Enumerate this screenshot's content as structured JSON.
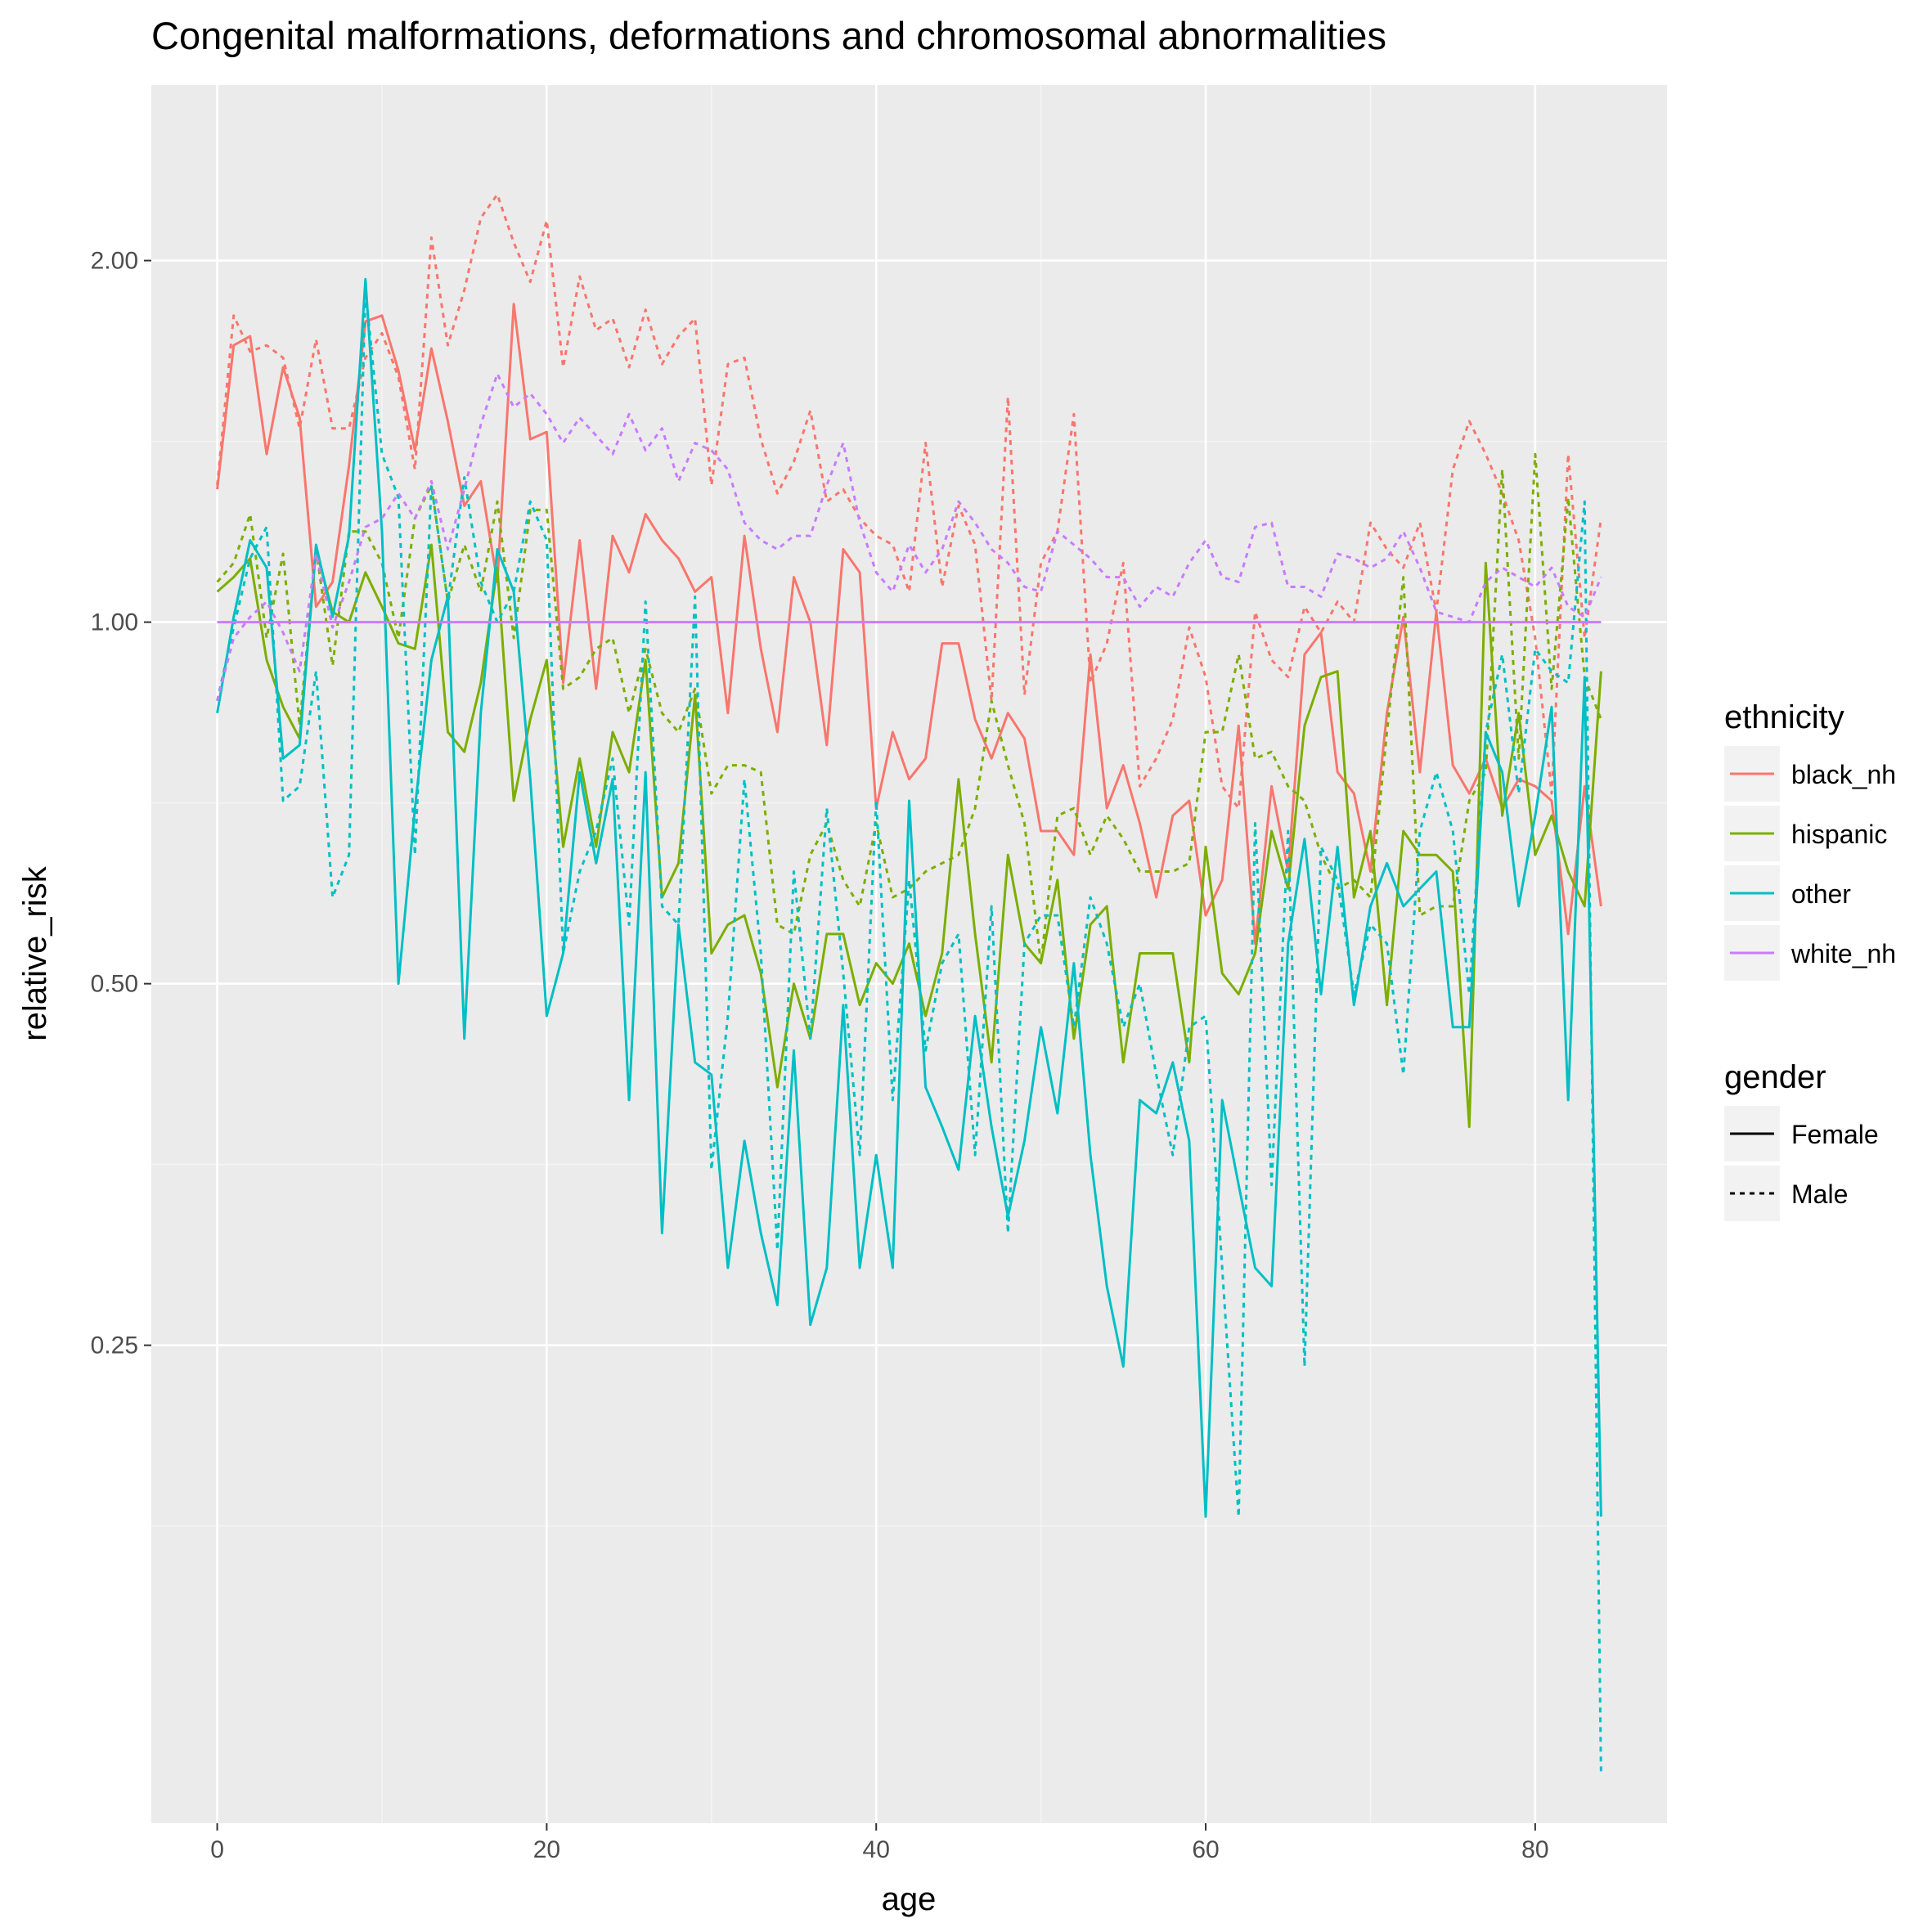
{
  "chart_data": {
    "type": "line",
    "title": "Congenital malformations, deformations and chromosomal abnormalities",
    "xlabel": "age",
    "ylabel": "relative_risk",
    "x_scale": "linear",
    "y_scale": "log2",
    "xlim": [
      -4,
      88
    ],
    "ylim": [
      0.1,
      2.8
    ],
    "x_ticks": [
      0,
      20,
      40,
      60,
      80
    ],
    "x_tick_labels": [
      "0",
      "20",
      "40",
      "60",
      "80"
    ],
    "y_ticks": [
      0.25,
      0.5,
      1,
      2
    ],
    "y_tick_labels": [
      "0.25",
      "0.50",
      "1.00",
      "2.00"
    ],
    "grid": true,
    "legend_position": "right",
    "legend": {
      "ethnicity_title": "ethnicity",
      "gender_title": "gender",
      "ethnicity": [
        {
          "label": "black_nh",
          "color": "#F8766D"
        },
        {
          "label": "hispanic",
          "color": "#7CAE00"
        },
        {
          "label": "other",
          "color": "#00BFC4"
        },
        {
          "label": "white_nh",
          "color": "#C77CFF"
        }
      ],
      "gender": [
        {
          "label": "Female",
          "linetype": "solid"
        },
        {
          "label": "Male",
          "linetype": "dashed"
        }
      ]
    },
    "x": [
      0,
      1,
      2,
      3,
      4,
      5,
      6,
      7,
      8,
      9,
      10,
      11,
      12,
      13,
      14,
      15,
      16,
      17,
      18,
      19,
      20,
      21,
      22,
      23,
      24,
      25,
      26,
      27,
      28,
      29,
      30,
      31,
      32,
      33,
      34,
      35,
      36,
      37,
      38,
      39,
      40,
      41,
      42,
      43,
      44,
      45,
      46,
      47,
      48,
      49,
      50,
      51,
      52,
      53,
      54,
      55,
      56,
      57,
      58,
      59,
      60,
      61,
      62,
      63,
      64,
      65,
      66,
      67,
      68,
      69,
      70,
      71,
      72,
      73,
      74,
      75,
      76,
      77,
      78,
      79,
      80,
      81,
      82,
      83,
      84
    ],
    "series": [
      {
        "ethnicity": "black_nh",
        "gender": "Female",
        "color": "#F8766D",
        "linetype": "solid",
        "values": [
          1.29,
          1.7,
          1.73,
          1.38,
          1.63,
          1.48,
          1.03,
          1.08,
          1.35,
          1.78,
          1.8,
          1.62,
          1.39,
          1.69,
          1.47,
          1.25,
          1.31,
          1.08,
          1.84,
          1.42,
          1.44,
          0.89,
          1.17,
          0.88,
          1.18,
          1.1,
          1.23,
          1.17,
          1.13,
          1.06,
          1.09,
          0.84,
          1.18,
          0.95,
          0.81,
          1.09,
          1.0,
          0.79,
          1.15,
          1.1,
          0.7,
          0.81,
          0.74,
          0.77,
          0.96,
          0.96,
          0.83,
          0.77,
          0.84,
          0.8,
          0.67,
          0.67,
          0.64,
          0.94,
          0.7,
          0.76,
          0.68,
          0.59,
          0.69,
          0.71,
          0.57,
          0.61,
          0.82,
          0.54,
          0.73,
          0.62,
          0.94,
          0.98,
          0.75,
          0.72,
          0.62,
          0.84,
          1.01,
          0.75,
          1.02,
          0.76,
          0.72,
          0.77,
          0.7,
          0.74,
          0.73,
          0.71,
          0.55,
          0.73,
          0.58
        ]
      },
      {
        "ethnicity": "black_nh",
        "gender": "Male",
        "color": "#F8766D",
        "linetype": "dashed",
        "values": [
          1.3,
          1.8,
          1.68,
          1.7,
          1.66,
          1.45,
          1.72,
          1.45,
          1.45,
          1.66,
          1.74,
          1.6,
          1.34,
          2.09,
          1.7,
          1.89,
          2.17,
          2.27,
          2.07,
          1.92,
          2.16,
          1.63,
          1.94,
          1.75,
          1.79,
          1.63,
          1.82,
          1.64,
          1.73,
          1.79,
          1.3,
          1.64,
          1.66,
          1.42,
          1.28,
          1.36,
          1.5,
          1.26,
          1.29,
          1.22,
          1.18,
          1.16,
          1.06,
          1.41,
          1.07,
          1.25,
          1.16,
          0.86,
          1.54,
          0.87,
          1.12,
          1.19,
          1.49,
          0.89,
          0.96,
          1.12,
          0.73,
          0.77,
          0.83,
          0.99,
          0.9,
          0.73,
          0.7,
          1.02,
          0.93,
          0.9,
          1.03,
          0.98,
          1.04,
          1.0,
          1.21,
          1.15,
          1.11,
          1.21,
          1.02,
          1.34,
          1.47,
          1.38,
          1.28,
          1.17,
          0.97,
          0.72,
          1.38,
          0.97,
          1.22
        ]
      },
      {
        "ethnicity": "hispanic",
        "gender": "Female",
        "color": "#7CAE00",
        "linetype": "solid",
        "values": [
          1.06,
          1.09,
          1.13,
          0.93,
          0.85,
          0.8,
          1.15,
          1.02,
          1.0,
          1.1,
          1.03,
          0.96,
          0.95,
          1.16,
          0.81,
          0.78,
          0.89,
          1.11,
          0.71,
          0.83,
          0.93,
          0.65,
          0.77,
          0.65,
          0.81,
          0.75,
          0.93,
          0.59,
          0.63,
          0.87,
          0.53,
          0.56,
          0.57,
          0.51,
          0.41,
          0.5,
          0.45,
          0.55,
          0.55,
          0.48,
          0.52,
          0.5,
          0.54,
          0.47,
          0.53,
          0.74,
          0.55,
          0.43,
          0.64,
          0.54,
          0.52,
          0.61,
          0.45,
          0.56,
          0.58,
          0.43,
          0.53,
          0.53,
          0.53,
          0.43,
          0.65,
          0.51,
          0.49,
          0.53,
          0.67,
          0.6,
          0.82,
          0.9,
          0.91,
          0.59,
          0.67,
          0.48,
          0.67,
          0.64,
          0.64,
          0.62,
          0.38,
          1.12,
          0.69,
          0.84,
          0.64,
          0.69,
          0.62,
          0.58,
          0.91
        ]
      },
      {
        "ethnicity": "hispanic",
        "gender": "Male",
        "color": "#7CAE00",
        "linetype": "dashed",
        "values": [
          1.08,
          1.12,
          1.23,
          0.97,
          1.14,
          0.82,
          1.15,
          0.92,
          1.19,
          1.19,
          1.12,
          0.97,
          1.22,
          1.3,
          1.04,
          1.16,
          1.06,
          1.26,
          0.97,
          1.24,
          1.24,
          0.88,
          0.9,
          0.95,
          0.97,
          0.84,
          0.95,
          0.84,
          0.81,
          0.88,
          0.72,
          0.76,
          0.76,
          0.75,
          0.56,
          0.55,
          0.64,
          0.68,
          0.61,
          0.58,
          0.68,
          0.59,
          0.6,
          0.62,
          0.63,
          0.64,
          0.7,
          0.86,
          0.76,
          0.68,
          0.52,
          0.69,
          0.7,
          0.64,
          0.69,
          0.66,
          0.62,
          0.62,
          0.62,
          0.63,
          0.81,
          0.81,
          0.94,
          0.77,
          0.78,
          0.73,
          0.71,
          0.64,
          0.6,
          0.61,
          0.59,
          0.81,
          1.09,
          0.57,
          0.58,
          0.58,
          0.71,
          0.75,
          1.34,
          0.77,
          1.38,
          0.88,
          1.27,
          0.9,
          0.83
        ]
      },
      {
        "ethnicity": "other",
        "gender": "Female",
        "color": "#00BFC4",
        "linetype": "solid",
        "values": [
          0.84,
          1.01,
          1.17,
          1.11,
          0.77,
          0.79,
          1.16,
          1.01,
          1.18,
          1.93,
          1.19,
          0.5,
          0.7,
          0.93,
          1.05,
          0.45,
          0.84,
          1.15,
          1.06,
          0.74,
          0.47,
          0.53,
          0.75,
          0.63,
          0.74,
          0.4,
          0.75,
          0.31,
          0.56,
          0.43,
          0.42,
          0.29,
          0.37,
          0.31,
          0.27,
          0.44,
          0.26,
          0.29,
          0.48,
          0.29,
          0.36,
          0.29,
          0.71,
          0.41,
          0.38,
          0.35,
          0.47,
          0.38,
          0.32,
          0.37,
          0.46,
          0.39,
          0.52,
          0.36,
          0.28,
          0.24,
          0.4,
          0.39,
          0.43,
          0.37,
          0.18,
          0.4,
          0.34,
          0.29,
          0.28,
          0.54,
          0.66,
          0.49,
          0.65,
          0.48,
          0.58,
          0.63,
          0.58,
          0.6,
          0.62,
          0.46,
          0.46,
          0.81,
          0.75,
          0.58,
          0.69,
          0.85,
          0.4,
          0.9,
          0.18
        ]
      },
      {
        "ethnicity": "other",
        "gender": "Male",
        "color": "#00BFC4",
        "linetype": "dashed",
        "values": [
          0.86,
          0.99,
          1.13,
          1.2,
          0.71,
          0.73,
          0.91,
          0.59,
          0.64,
          1.89,
          1.38,
          1.27,
          0.64,
          1.3,
          1.04,
          1.32,
          1.08,
          1.0,
          1.06,
          1.26,
          1.17,
          0.53,
          0.62,
          0.67,
          0.77,
          0.56,
          1.04,
          0.58,
          0.56,
          1.05,
          0.35,
          0.47,
          0.74,
          0.53,
          0.3,
          0.62,
          0.45,
          0.7,
          0.51,
          0.36,
          0.71,
          0.4,
          0.61,
          0.44,
          0.52,
          0.55,
          0.36,
          0.58,
          0.31,
          0.54,
          0.57,
          0.57,
          0.46,
          0.59,
          0.54,
          0.46,
          0.5,
          0.42,
          0.36,
          0.46,
          0.47,
          0.29,
          0.18,
          0.68,
          0.34,
          0.67,
          0.24,
          0.65,
          0.61,
          0.49,
          0.56,
          0.54,
          0.42,
          0.67,
          0.75,
          0.67,
          0.49,
          0.81,
          0.94,
          0.72,
          0.95,
          0.91,
          0.89,
          1.26,
          0.11
        ]
      },
      {
        "ethnicity": "white_nh",
        "gender": "Female",
        "color": "#C77CFF",
        "linetype": "solid",
        "values": [
          1.0,
          1.0,
          1.0,
          1.0,
          1.0,
          1.0,
          1.0,
          1.0,
          1.0,
          1.0,
          1.0,
          1.0,
          1.0,
          1.0,
          1.0,
          1.0,
          1.0,
          1.0,
          1.0,
          1.0,
          1.0,
          1.0,
          1.0,
          1.0,
          1.0,
          1.0,
          1.0,
          1.0,
          1.0,
          1.0,
          1.0,
          1.0,
          1.0,
          1.0,
          1.0,
          1.0,
          1.0,
          1.0,
          1.0,
          1.0,
          1.0,
          1.0,
          1.0,
          1.0,
          1.0,
          1.0,
          1.0,
          1.0,
          1.0,
          1.0,
          1.0,
          1.0,
          1.0,
          1.0,
          1.0,
          1.0,
          1.0,
          1.0,
          1.0,
          1.0,
          1.0,
          1.0,
          1.0,
          1.0,
          1.0,
          1.0,
          1.0,
          1.0,
          1.0,
          1.0,
          1.0,
          1.0,
          1.0,
          1.0,
          1.0,
          1.0,
          1.0,
          1.0,
          1.0,
          1.0,
          1.0,
          1.0,
          1.0,
          1.0,
          1.0
        ]
      },
      {
        "ethnicity": "white_nh",
        "gender": "Male",
        "color": "#C77CFF",
        "linetype": "dashed",
        "values": [
          0.86,
          0.97,
          1.01,
          1.04,
          0.98,
          0.91,
          1.14,
          0.99,
          1.08,
          1.2,
          1.22,
          1.28,
          1.22,
          1.31,
          1.15,
          1.29,
          1.46,
          1.61,
          1.51,
          1.55,
          1.49,
          1.41,
          1.48,
          1.43,
          1.38,
          1.49,
          1.39,
          1.45,
          1.31,
          1.41,
          1.39,
          1.34,
          1.21,
          1.17,
          1.15,
          1.18,
          1.18,
          1.3,
          1.41,
          1.21,
          1.1,
          1.06,
          1.16,
          1.1,
          1.15,
          1.26,
          1.21,
          1.15,
          1.12,
          1.07,
          1.06,
          1.19,
          1.16,
          1.13,
          1.09,
          1.09,
          1.03,
          1.07,
          1.05,
          1.12,
          1.17,
          1.09,
          1.08,
          1.2,
          1.21,
          1.07,
          1.07,
          1.05,
          1.14,
          1.13,
          1.11,
          1.13,
          1.19,
          1.11,
          1.02,
          1.01,
          1.0,
          1.08,
          1.11,
          1.09,
          1.07,
          1.11,
          1.03,
          1.01,
          1.09
        ]
      }
    ]
  }
}
